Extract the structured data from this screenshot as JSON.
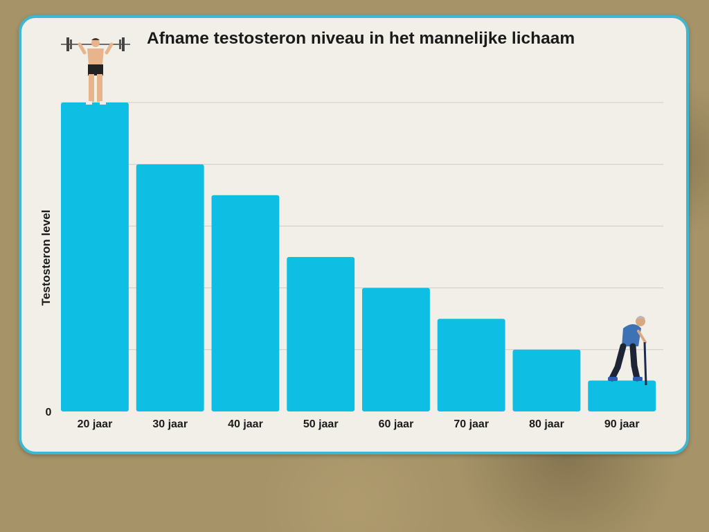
{
  "chart_data": {
    "type": "bar",
    "title": "Afname testosteron niveau in het mannelijke lichaam",
    "ylabel": "Testosteron level",
    "xlabel": "",
    "categories": [
      "20 jaar",
      "30 jaar",
      "40 jaar",
      "50 jaar",
      "60 jaar",
      "70 jaar",
      "80 jaar",
      "90 jaar"
    ],
    "values": [
      100,
      80,
      70,
      50,
      40,
      30,
      20,
      10
    ],
    "ylim": [
      0,
      100
    ],
    "y_tick_labels": [
      "0"
    ],
    "grid": true,
    "colors": {
      "bar": "#0ebfe3",
      "grid": "#cfccc4",
      "panel_border": "#3fb8cf"
    },
    "icons": [
      "weightlifter-icon",
      "elderly-man-with-cane-icon"
    ]
  }
}
